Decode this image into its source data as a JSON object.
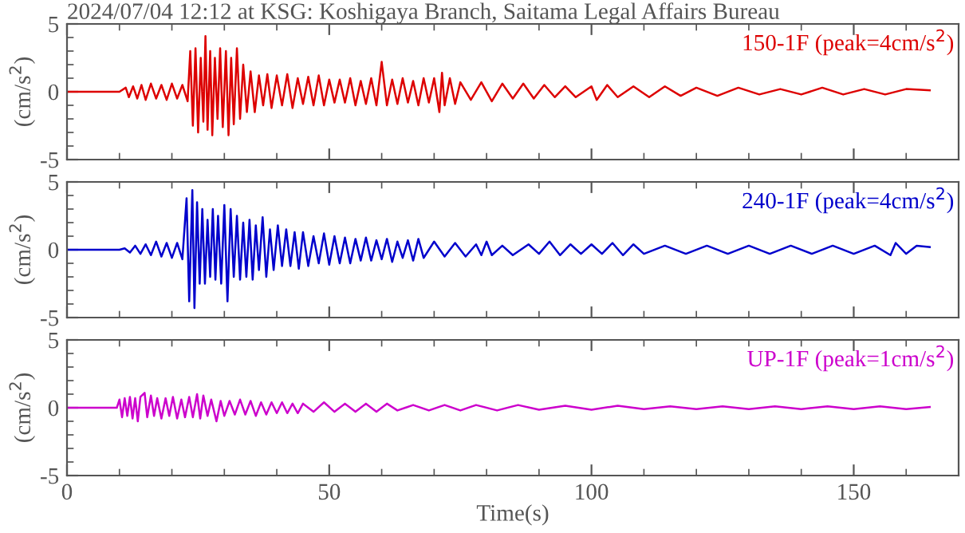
{
  "chart_data": [
    {
      "type": "line",
      "title": "2024/07/04 12:12 at KSG: Koshigaya Branch, Saitama Legal Affairs Bureau",
      "ylabel": "(cm/s$^{2}$)",
      "tick_labels": "y",
      "legend": false,
      "grid": false,
      "xlim": [
        0,
        170
      ],
      "ylim": [
        -5,
        5
      ],
      "xticks": [
        0,
        {
          "value": 10,
          "label": null
        },
        {
          "value": 20,
          "label": null
        },
        {
          "value": 30,
          "label": null
        },
        {
          "value": 40,
          "label": null
        },
        50,
        {
          "value": 60,
          "label": null
        },
        {
          "value": 70,
          "label": null
        },
        {
          "value": 80,
          "label": null
        },
        {
          "value": 90,
          "label": null
        },
        100,
        {
          "value": 110,
          "label": null
        },
        {
          "value": 120,
          "label": null
        },
        {
          "value": 130,
          "label": null
        },
        {
          "value": 140,
          "label": null
        },
        150,
        {
          "value": 160,
          "label": null
        }
      ],
      "yticks": [
        -5,
        {
          "value": -4,
          "label": null
        },
        {
          "value": -3,
          "label": null
        },
        {
          "value": -2,
          "label": null
        },
        {
          "value": -1,
          "label": null
        },
        0,
        {
          "value": 1,
          "label": null
        },
        {
          "value": 2,
          "label": null
        },
        {
          "value": 3,
          "label": null
        },
        {
          "value": 4,
          "label": null
        },
        5
      ],
      "series": [
        {
          "name": "150-1F (peak=4cm/s$^{2}$)",
          "color": "#dd0000",
          "x": [
            0,
            10,
            11.2,
            11.8,
            12.6,
            13.4,
            14.2,
            15,
            16,
            17,
            18,
            19,
            20,
            21,
            22,
            23,
            23.5,
            24,
            24.5,
            25,
            25.5,
            26,
            26.4,
            26.8,
            27.3,
            27.7,
            28.2,
            28.7,
            29.2,
            29.7,
            30.3,
            30.8,
            31.3,
            31.8,
            32.4,
            33,
            33.6,
            34.3,
            35,
            35.8,
            36.6,
            37.4,
            38.2,
            39,
            40,
            41,
            42,
            43,
            44,
            45,
            46,
            47,
            48,
            49,
            50,
            51,
            52,
            53,
            54,
            55,
            56,
            57,
            58,
            59,
            60,
            61,
            62,
            63,
            64,
            65,
            66,
            67,
            68,
            69,
            70,
            71,
            71.5,
            72,
            73,
            74,
            75,
            77,
            79,
            81,
            83,
            85,
            87,
            89,
            91,
            93,
            95,
            97,
            100,
            101,
            103,
            105,
            108,
            111,
            114,
            117,
            120,
            124,
            128,
            132,
            136,
            140,
            144,
            148,
            152,
            156,
            160,
            164.5
          ],
          "values": [
            0,
            0,
            0.3,
            -0.4,
            0.4,
            -0.5,
            0.5,
            -0.6,
            0.6,
            -0.5,
            0.5,
            -0.6,
            0.6,
            -0.5,
            0.5,
            -0.7,
            3.0,
            -2.5,
            3.2,
            -3.0,
            2.5,
            -2.2,
            4.1,
            -2.8,
            3.0,
            -3.2,
            2.5,
            -2.0,
            3.2,
            -2.6,
            3.0,
            -3.2,
            2.5,
            -2.4,
            3.2,
            -2.0,
            2.0,
            -1.5,
            1.5,
            -1.5,
            1.2,
            -1.0,
            1.3,
            -1.2,
            1.2,
            -1.0,
            1.3,
            -1.2,
            1.0,
            -0.9,
            1.1,
            -1.0,
            1.2,
            -1.0,
            0.9,
            -0.8,
            0.9,
            -0.8,
            1.0,
            -1.0,
            0.8,
            -0.9,
            1.0,
            -1.0,
            2.2,
            -1.0,
            0.9,
            -0.9,
            1.0,
            -0.8,
            0.8,
            -1.0,
            1.0,
            -0.8,
            1.0,
            -1.5,
            1.4,
            -1.0,
            1.0,
            -0.9,
            0.7,
            -0.6,
            0.7,
            -0.7,
            0.6,
            -0.5,
            0.6,
            -0.5,
            0.5,
            -0.4,
            0.4,
            -0.4,
            0.4,
            -0.6,
            0.5,
            -0.4,
            0.4,
            -0.4,
            0.4,
            -0.3,
            0.3,
            -0.3,
            0.3,
            -0.2,
            0.2,
            -0.2,
            0.3,
            -0.2,
            0.2,
            -0.2,
            0.2,
            0.1
          ]
        }
      ]
    },
    {
      "type": "line",
      "ylabel": "(cm/s$^{2}$)",
      "tick_labels": "y",
      "legend": false,
      "grid": false,
      "xlim": [
        0,
        170
      ],
      "ylim": [
        -5,
        5
      ],
      "xticks": [
        0,
        {
          "value": 10,
          "label": null
        },
        {
          "value": 20,
          "label": null
        },
        {
          "value": 30,
          "label": null
        },
        {
          "value": 40,
          "label": null
        },
        50,
        {
          "value": 60,
          "label": null
        },
        {
          "value": 70,
          "label": null
        },
        {
          "value": 80,
          "label": null
        },
        {
          "value": 90,
          "label": null
        },
        100,
        {
          "value": 110,
          "label": null
        },
        {
          "value": 120,
          "label": null
        },
        {
          "value": 130,
          "label": null
        },
        {
          "value": 140,
          "label": null
        },
        150,
        {
          "value": 160,
          "label": null
        }
      ],
      "yticks": [
        -5,
        {
          "value": -4,
          "label": null
        },
        {
          "value": -3,
          "label": null
        },
        {
          "value": -2,
          "label": null
        },
        {
          "value": -1,
          "label": null
        },
        0,
        {
          "value": 1,
          "label": null
        },
        {
          "value": 2,
          "label": null
        },
        {
          "value": 3,
          "label": null
        },
        {
          "value": 4,
          "label": null
        },
        5
      ],
      "series": [
        {
          "name": "240-1F (peak=4cm/s$^{2}$)",
          "color": "#0000cc",
          "x": [
            0,
            10,
            11,
            12,
            13,
            14,
            15,
            16,
            17,
            18,
            19,
            20,
            21,
            22,
            22.8,
            23.3,
            23.9,
            24.3,
            24.8,
            25.3,
            25.8,
            26.3,
            26.8,
            27.3,
            27.8,
            28.3,
            28.8,
            29.4,
            30,
            30.6,
            31.2,
            31.8,
            32.4,
            33,
            33.6,
            34.2,
            34.8,
            35.4,
            36,
            36.6,
            37.3,
            38,
            38.7,
            39.4,
            40.2,
            41,
            41.8,
            42.6,
            43.4,
            44.2,
            45,
            46,
            47,
            48,
            49,
            50,
            51,
            52,
            53,
            54,
            55,
            56,
            57,
            58,
            59,
            60,
            61,
            62,
            63,
            64,
            65,
            66,
            67,
            68,
            70,
            72,
            74,
            76,
            78,
            79,
            80,
            81,
            83,
            85,
            88,
            90,
            92,
            94,
            96,
            98,
            100,
            102,
            104,
            106,
            108,
            110,
            114,
            118,
            122,
            126,
            130,
            134,
            138,
            142,
            146,
            150,
            154,
            157,
            158,
            160,
            162,
            164.5
          ],
          "values": [
            0,
            0,
            0.1,
            -0.2,
            0.3,
            -0.3,
            0.4,
            -0.4,
            0.6,
            -0.5,
            0.5,
            -0.6,
            0.5,
            -0.7,
            3.8,
            -3.8,
            4.4,
            -4.3,
            3.5,
            -2.5,
            3.0,
            -2.5,
            2.2,
            -2.0,
            3.0,
            -2.2,
            2.5,
            -2.5,
            3.3,
            -3.8,
            3.0,
            -2.0,
            2.5,
            -2.2,
            2.0,
            -2.0,
            2.2,
            -2.2,
            1.8,
            -1.5,
            2.4,
            -2.0,
            1.5,
            -1.5,
            1.8,
            -1.2,
            1.5,
            -1.2,
            1.3,
            -1.4,
            1.3,
            -1.2,
            1.0,
            -1.0,
            1.2,
            -1.1,
            1.0,
            -1.0,
            0.9,
            -1.0,
            0.8,
            -0.8,
            0.9,
            -0.8,
            0.7,
            -0.7,
            0.8,
            -0.9,
            0.6,
            -0.6,
            0.7,
            -0.8,
            0.8,
            -0.6,
            0.6,
            -0.5,
            0.5,
            -0.5,
            0.4,
            -0.4,
            0.6,
            -0.4,
            0.3,
            -0.4,
            0.4,
            -0.3,
            0.6,
            -0.4,
            0.4,
            -0.3,
            0.4,
            -0.3,
            0.5,
            -0.4,
            0.4,
            -0.3,
            0.3,
            -0.3,
            0.3,
            -0.3,
            0.3,
            -0.3,
            0.3,
            -0.3,
            0.3,
            -0.3,
            0.3,
            -0.4,
            0.5,
            -0.3,
            0.3,
            0.2
          ]
        }
      ]
    },
    {
      "type": "line",
      "ylabel": "(cm/s$^{2}$)",
      "xlabel": "Time(s)",
      "legend": false,
      "grid": false,
      "xlim": [
        0,
        170
      ],
      "ylim": [
        -5,
        5
      ],
      "xticks": [
        0,
        {
          "value": 10,
          "label": null
        },
        {
          "value": 20,
          "label": null
        },
        {
          "value": 30,
          "label": null
        },
        {
          "value": 40,
          "label": null
        },
        50,
        {
          "value": 60,
          "label": null
        },
        {
          "value": 70,
          "label": null
        },
        {
          "value": 80,
          "label": null
        },
        {
          "value": 90,
          "label": null
        },
        100,
        {
          "value": 110,
          "label": null
        },
        {
          "value": 120,
          "label": null
        },
        {
          "value": 130,
          "label": null
        },
        {
          "value": 140,
          "label": null
        },
        150,
        {
          "value": 160,
          "label": null
        }
      ],
      "yticks": [
        -5,
        {
          "value": -4,
          "label": null
        },
        {
          "value": -3,
          "label": null
        },
        {
          "value": -2,
          "label": null
        },
        {
          "value": -1,
          "label": null
        },
        0,
        {
          "value": 1,
          "label": null
        },
        {
          "value": 2,
          "label": null
        },
        {
          "value": 3,
          "label": null
        },
        {
          "value": 4,
          "label": null
        },
        5
      ],
      "series": [
        {
          "name": "UP-1F (peak=1cm/s$^{2}$)",
          "color": "#cc00cc",
          "x": [
            0,
            9.5,
            10,
            10.5,
            11,
            11.5,
            12,
            12.5,
            13,
            13.5,
            14,
            14.8,
            15.3,
            16,
            16.6,
            17.2,
            18,
            18.8,
            19.5,
            20.2,
            21,
            21.8,
            22.5,
            23.3,
            24,
            24.8,
            25.4,
            26,
            26.8,
            27.5,
            28.5,
            29.3,
            30,
            31,
            32,
            33,
            34,
            35,
            36,
            37,
            38,
            39,
            40,
            41,
            42,
            43,
            44,
            45,
            47,
            49,
            51,
            53,
            55,
            57,
            59,
            61,
            63,
            66,
            69,
            72,
            75,
            78,
            82,
            86,
            90,
            95,
            100,
            105,
            110,
            115,
            120,
            125,
            130,
            135,
            140,
            145,
            150,
            155,
            160,
            164.5
          ],
          "values": [
            0,
            0,
            0.6,
            -0.7,
            0.7,
            -0.6,
            0.8,
            -0.8,
            0.7,
            -1.0,
            0.8,
            1.1,
            -0.7,
            0.9,
            -0.6,
            0.7,
            -0.8,
            0.7,
            -0.6,
            0.8,
            -0.8,
            0.6,
            -0.7,
            0.8,
            -0.7,
            1.0,
            -0.8,
            0.9,
            -0.6,
            0.6,
            -1.0,
            0.5,
            -0.6,
            0.5,
            -0.5,
            0.6,
            -0.5,
            0.5,
            -0.6,
            0.4,
            -0.5,
            0.4,
            -0.4,
            0.4,
            -0.4,
            0.3,
            -0.4,
            0.3,
            -0.3,
            0.4,
            -0.3,
            0.3,
            -0.3,
            0.3,
            -0.3,
            0.3,
            -0.2,
            0.2,
            -0.2,
            0.2,
            -0.2,
            0.2,
            -0.2,
            0.2,
            -0.15,
            0.15,
            -0.15,
            0.15,
            -0.1,
            0.1,
            -0.1,
            0.1,
            -0.1,
            0.1,
            -0.1,
            0.1,
            -0.1,
            0.1,
            -0.1,
            0.05
          ]
        }
      ]
    }
  ]
}
